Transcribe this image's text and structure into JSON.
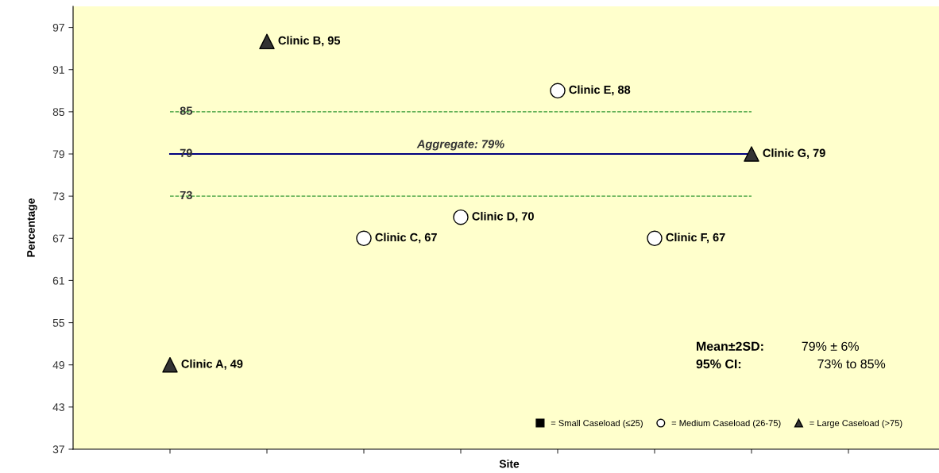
{
  "chart_data": {
    "type": "scatter",
    "xlabel": "Site",
    "ylabel": "Percentage",
    "categories": [
      null,
      null,
      null,
      null,
      null,
      null,
      null,
      null
    ],
    "ylim": [
      37,
      100
    ],
    "yticks": [
      37,
      43,
      49,
      55,
      61,
      67,
      73,
      79,
      85,
      91,
      97
    ],
    "series": [
      {
        "name": "= Small Caseload (≤25)",
        "marker": "square",
        "color": "#000000",
        "values": [
          null,
          null,
          null,
          null,
          null,
          null,
          null,
          null
        ]
      },
      {
        "name": "= Medium Caseload (26-75)",
        "marker": "circle",
        "color": "#ffffff",
        "values": [
          null,
          null,
          67,
          70,
          88,
          67,
          null,
          null
        ],
        "value_labels": [
          null,
          null,
          "Clinic C, 67",
          "Clinic D, 70",
          "Clinic E, 88",
          "Clinic F, 67",
          null,
          null
        ]
      },
      {
        "name": "= Large Caseload (>75)",
        "marker": "triangle",
        "color": "#333333",
        "values": [
          49,
          95,
          null,
          null,
          null,
          null,
          79,
          null
        ],
        "value_labels": [
          "Clinic A, 49",
          "Clinic B, 95",
          null,
          null,
          null,
          null,
          "Clinic G, 79",
          null
        ]
      }
    ],
    "ref_lines": [
      {
        "axis": "y",
        "value": 85,
        "label": "85",
        "color": "#339933",
        "line_style": "dashed"
      },
      {
        "axis": "y",
        "value": 79,
        "label": "79",
        "color": "#000080",
        "line_style": "solid"
      },
      {
        "axis": "y",
        "value": 73,
        "label": "73",
        "color": "#339933",
        "line_style": "dashed"
      }
    ],
    "annotations": [
      {
        "text": "Aggregate: 79%",
        "y": 79
      },
      "Mean±2SD:",
      "79% ± 6%",
      "95% CI:",
      "73% to 85%"
    ],
    "legend": "bottom right",
    "grid": false
  }
}
